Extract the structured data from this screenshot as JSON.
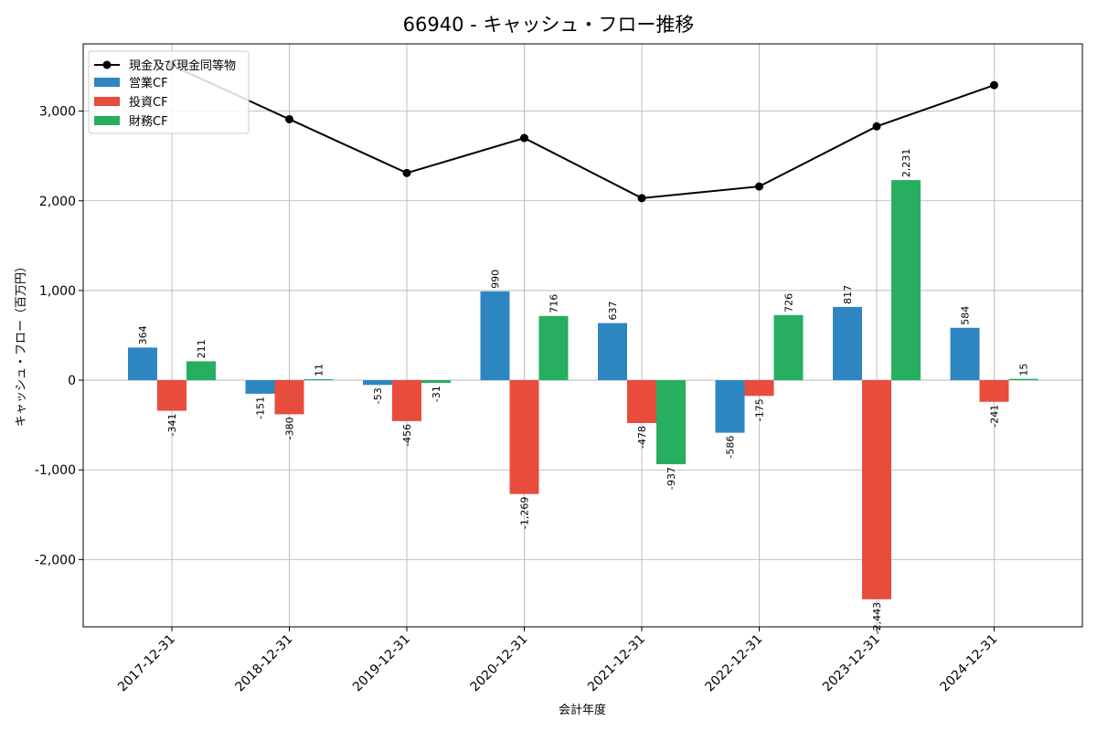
{
  "chart_data": {
    "type": "bar",
    "title": "66940 - キャッシュ・フロー推移",
    "xlabel": "会計年度",
    "ylabel": "キャッシュ・フロー（百万円）",
    "categories": [
      "2017-12-31",
      "2018-12-31",
      "2019-12-31",
      "2020-12-31",
      "2021-12-31",
      "2022-12-31",
      "2023-12-31",
      "2024-12-31"
    ],
    "ylim": [
      -2750,
      3750
    ],
    "yticks": [
      -2000,
      -1000,
      0,
      1000,
      2000,
      3000
    ],
    "ytick_labels": [
      "-2,000",
      "-1,000",
      "0",
      "1,000",
      "2,000",
      "3,000"
    ],
    "grid": true,
    "legend_position": "top-left",
    "series": [
      {
        "name": "営業CF",
        "kind": "bar",
        "color": "#2e86c1",
        "values": [
          364,
          -151,
          -53,
          990,
          637,
          -586,
          817,
          584
        ],
        "labels": [
          "364",
          "-151",
          "-53",
          "990",
          "637",
          "-586",
          "817",
          "584"
        ]
      },
      {
        "name": "投資CF",
        "kind": "bar",
        "color": "#e74c3c",
        "values": [
          -341,
          -380,
          -456,
          -1269,
          -478,
          -175,
          -2443,
          -241
        ],
        "labels": [
          "-341",
          "-380",
          "-456",
          "-1,269",
          "-478",
          "-175",
          "-2,443",
          "-241"
        ]
      },
      {
        "name": "財務CF",
        "kind": "bar",
        "color": "#27ae60",
        "values": [
          211,
          11,
          -31,
          716,
          -937,
          726,
          2231,
          15
        ],
        "labels": [
          "211",
          "11",
          "-31",
          "716",
          "-937",
          "726",
          "2,231",
          "15"
        ]
      }
    ],
    "line_series": {
      "name": "現金及び現金同等物",
      "kind": "line",
      "color": "#000000",
      "values": [
        3510,
        2910,
        2310,
        2700,
        2030,
        2160,
        2830,
        3290
      ]
    }
  }
}
